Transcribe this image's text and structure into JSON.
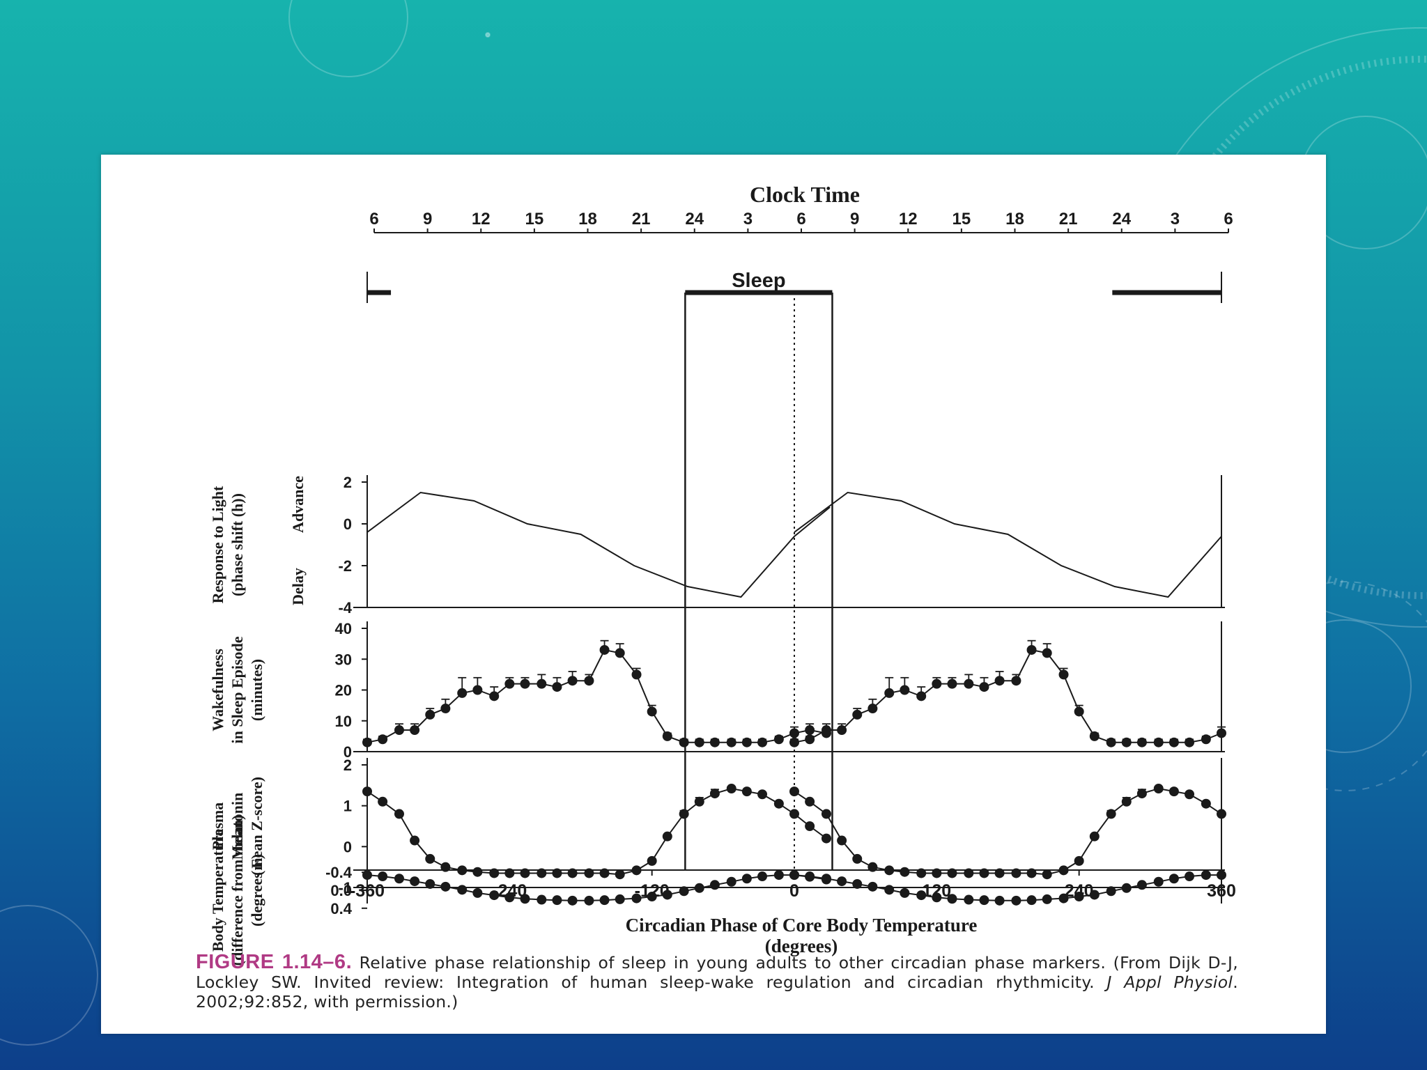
{
  "caption": {
    "label": "FIGURE 1.14–6.",
    "text_1": " Relative phase relationship of sleep in young adults to other circadian phase markers. (From Dijk D-J, Lockley SW. Invited review: Integration of human sleep-wake regulation and circadian rhythmicity. ",
    "journal": "J Appl Physiol",
    "text_2": ". 2002;92:852, with permission.)"
  },
  "colors": {
    "slide_bg_top": "#17b3ad",
    "slide_bg_bottom": "#0d3f8a",
    "caption_label": "#b03a84",
    "ink": "#1a1a1a"
  },
  "chart_data": {
    "type": "line",
    "top_axis": {
      "title": "Clock Time",
      "tick_labels": [
        "6",
        "9",
        "12",
        "15",
        "18",
        "21",
        "24",
        "3",
        "6",
        "9",
        "12",
        "15",
        "18",
        "21",
        "24",
        "3",
        "6"
      ]
    },
    "sleep_label": "Sleep",
    "sleep_bars": [
      [
        -360,
        -340
      ],
      [
        -92,
        32
      ],
      [
        268,
        360
      ]
    ],
    "sleep_window": [
      -92,
      32
    ],
    "xlabel": "Circadian Phase of Core Body Temperature",
    "xlabel_2": "(degrees)",
    "x_ticks": [
      "-360",
      "-240",
      "-120",
      "0",
      "120",
      "240",
      "360"
    ],
    "xlim": [
      -360,
      360
    ],
    "panels": [
      {
        "id": "light",
        "ylabel": [
          "Response to Light",
          "(phase shift (h))"
        ],
        "side_labels": {
          "top": "Advance",
          "bottom": "Delay"
        },
        "ylim": [
          -4,
          2
        ],
        "yticks": [
          "2",
          "0",
          "-2",
          "-4"
        ],
        "markers": false,
        "x": [
          -360,
          -315,
          -270,
          -225,
          -180,
          -135,
          -90,
          -45,
          0,
          30
        ],
        "y": [
          -0.4,
          1.5,
          1.1,
          0.0,
          -0.5,
          -2.0,
          -3.0,
          -3.5,
          -0.6,
          0.8
        ]
      },
      {
        "id": "wake",
        "ylabel": [
          "Wakefulness",
          "in Sleep Episode",
          "(minutes)"
        ],
        "ylim": [
          0,
          40
        ],
        "yticks": [
          "40",
          "30",
          "20",
          "10",
          "0"
        ],
        "markers": true,
        "x": [
          -360,
          -347,
          -333,
          -320,
          -307,
          -294,
          -280,
          -267,
          -253,
          -240,
          -227,
          -213,
          -200,
          -187,
          -173,
          -160,
          -147,
          -133,
          -120,
          -107,
          -93,
          -80,
          -67,
          -53,
          -40,
          -27,
          -13,
          0,
          13,
          27
        ],
        "y": [
          3,
          4,
          7,
          7,
          12,
          14,
          19,
          20,
          18,
          22,
          22,
          22,
          21,
          23,
          23,
          33,
          32,
          25,
          13,
          5,
          3,
          3,
          3,
          3,
          3,
          3,
          4,
          6,
          7,
          6
        ],
        "err": [
          1,
          1,
          2,
          2,
          2,
          3,
          5,
          4,
          3,
          2,
          2,
          3,
          3,
          3,
          2,
          3,
          3,
          2,
          2,
          1,
          1,
          1,
          1,
          1,
          1,
          1,
          1,
          2,
          2,
          1
        ]
      },
      {
        "id": "melatonin",
        "ylabel": [
          "Plasma",
          "Melatonin",
          "(mean Z-score)"
        ],
        "ylim": [
          -1,
          2
        ],
        "yticks": [
          "2",
          "1",
          "0",
          "-1"
        ],
        "markers": true,
        "x": [
          -360,
          -347,
          -333,
          -320,
          -307,
          -294,
          -280,
          -267,
          -253,
          -240,
          -227,
          -213,
          -200,
          -187,
          -173,
          -160,
          -147,
          -133,
          -120,
          -107,
          -93,
          -80,
          -67,
          -53,
          -40,
          -27,
          -13,
          0,
          13,
          27
        ],
        "y": [
          1.35,
          1.1,
          0.8,
          0.15,
          -0.3,
          -0.5,
          -0.58,
          -0.62,
          -0.65,
          -0.65,
          -0.65,
          -0.65,
          -0.65,
          -0.65,
          -0.65,
          -0.65,
          -0.68,
          -0.58,
          -0.35,
          0.25,
          0.8,
          1.1,
          1.3,
          1.42,
          1.35,
          1.28,
          1.05,
          0.8,
          0.5,
          0.2
        ],
        "err": [
          0,
          0,
          0,
          0,
          0,
          0,
          0,
          0,
          0,
          0,
          0,
          0,
          0,
          0,
          0,
          0,
          0,
          0,
          0,
          0,
          0.08,
          0.1,
          0.1,
          0.05,
          0.05,
          0.05,
          0,
          0,
          0,
          0
        ]
      },
      {
        "id": "temperature",
        "ylabel": [
          "Body Temperature",
          "(difference from mean)",
          "(degrees F)"
        ],
        "ylim": [
          -0.45,
          0.45
        ],
        "yticks": [
          "0.4",
          "0.0",
          "-0.4"
        ],
        "markers": true,
        "x": [
          -360,
          -347,
          -333,
          -320,
          -307,
          -294,
          -280,
          -267,
          -253,
          -240,
          -227,
          -213,
          -200,
          -187,
          -173,
          -160,
          -147,
          -133,
          -120,
          -107,
          -93,
          -80,
          -67,
          -53,
          -40,
          -27,
          -13,
          0,
          13,
          27
        ],
        "y": [
          -0.34,
          -0.31,
          -0.26,
          -0.2,
          -0.14,
          -0.08,
          -0.01,
          0.06,
          0.11,
          0.16,
          0.19,
          0.21,
          0.22,
          0.23,
          0.23,
          0.22,
          0.2,
          0.18,
          0.14,
          0.1,
          0.02,
          -0.05,
          -0.12,
          -0.19,
          -0.26,
          -0.31,
          -0.34,
          -0.34,
          -0.3,
          -0.24
        ]
      }
    ]
  }
}
